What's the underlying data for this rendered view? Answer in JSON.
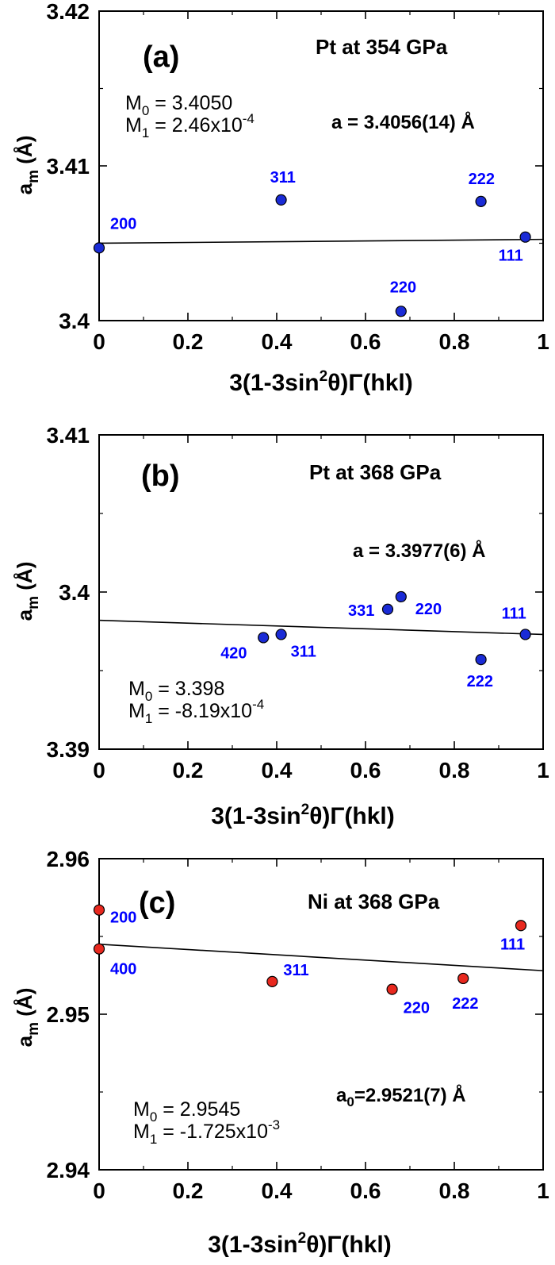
{
  "colors": {
    "blue": "#0000ff",
    "red": "#ff2020",
    "axis": "#000000"
  },
  "chart_data": [
    {
      "type": "scatter",
      "panel_label": "(a)",
      "title": "Pt at 354 GPa",
      "fit_text": "a = 3.4056(14) Å",
      "m0_text": "M0 = 3.4050",
      "m1_text": "M1 = 2.46x10-4",
      "m0_value": 3.405,
      "m1_value": 0.000246,
      "xlabel": "3(1-3sin²θ)Γ(hkl)",
      "ylabel": "am (Å)",
      "xlim": [
        0,
        1
      ],
      "ylim": [
        3.4,
        3.42
      ],
      "xticks": [
        "0",
        "0.2",
        "0.4",
        "0.6",
        "0.8",
        "1"
      ],
      "yticks": [
        "3.4",
        "3.41",
        "3.42"
      ],
      "marker_color": "#1a2bd6",
      "label_color": "#0000ff",
      "fit_line": {
        "x": [
          0,
          1
        ],
        "y": [
          3.405,
          3.40525
        ]
      },
      "points": [
        {
          "x": 0.0,
          "y": 3.4047,
          "label": "200"
        },
        {
          "x": 0.41,
          "y": 3.4078,
          "label": "311"
        },
        {
          "x": 0.68,
          "y": 3.4006,
          "label": "220"
        },
        {
          "x": 0.86,
          "y": 3.4077,
          "label": "222"
        },
        {
          "x": 0.96,
          "y": 3.4054,
          "label": "111"
        }
      ]
    },
    {
      "type": "scatter",
      "panel_label": "(b)",
      "title": "Pt at 368 GPa",
      "fit_text": "a = 3.3977(6) Å",
      "m0_text": "M0 = 3.398",
      "m1_text": "M1 = -8.19x10-4",
      "m0_value": 3.398,
      "m1_value": -0.000819,
      "xlabel": "3(1-3sin²θ)Γ(hkl)",
      "ylabel": "am (Å)",
      "xlim": [
        0,
        1
      ],
      "ylim": [
        3.39,
        3.41
      ],
      "xticks": [
        "0",
        "0.2",
        "0.4",
        "0.6",
        "0.8",
        "1"
      ],
      "yticks": [
        "3.39",
        "3.4",
        "3.41"
      ],
      "marker_color": "#1a2bd6",
      "label_color": "#0000ff",
      "fit_line": {
        "x": [
          0,
          1
        ],
        "y": [
          3.3982,
          3.3973
        ]
      },
      "points": [
        {
          "x": 0.37,
          "y": 3.3971,
          "label": "420"
        },
        {
          "x": 0.41,
          "y": 3.3973,
          "label": "311"
        },
        {
          "x": 0.65,
          "y": 3.3989,
          "label": "331"
        },
        {
          "x": 0.68,
          "y": 3.3997,
          "label": "220"
        },
        {
          "x": 0.86,
          "y": 3.3957,
          "label": "222"
        },
        {
          "x": 0.96,
          "y": 3.3973,
          "label": "111"
        }
      ]
    },
    {
      "type": "scatter",
      "panel_label": "(c)",
      "title": "Ni at 368 GPa",
      "fit_text": "a0=2.9521(7) Å",
      "m0_text": "M0 = 2.9545",
      "m1_text": "M1 = -1.725x10-3",
      "m0_value": 2.9545,
      "m1_value": -0.001725,
      "xlabel": "3(1-3sin²θ)Γ(hkl)",
      "ylabel": "am (Å)",
      "xlim": [
        0,
        1
      ],
      "ylim": [
        2.94,
        2.96
      ],
      "xticks": [
        "0",
        "0.2",
        "0.4",
        "0.6",
        "0.8",
        "1"
      ],
      "yticks": [
        "2.94",
        "2.95",
        "2.96"
      ],
      "marker_color": "#e8281e",
      "label_color": "#0000ff",
      "fit_line": {
        "x": [
          0,
          1
        ],
        "y": [
          2.9545,
          2.9528
        ]
      },
      "points": [
        {
          "x": 0.0,
          "y": 2.9567,
          "label": "200"
        },
        {
          "x": 0.0,
          "y": 2.9542,
          "label": "400"
        },
        {
          "x": 0.39,
          "y": 2.9521,
          "label": "311"
        },
        {
          "x": 0.66,
          "y": 2.9516,
          "label": "220"
        },
        {
          "x": 0.82,
          "y": 2.9523,
          "label": "222"
        },
        {
          "x": 0.95,
          "y": 2.9557,
          "label": "111"
        }
      ]
    }
  ]
}
